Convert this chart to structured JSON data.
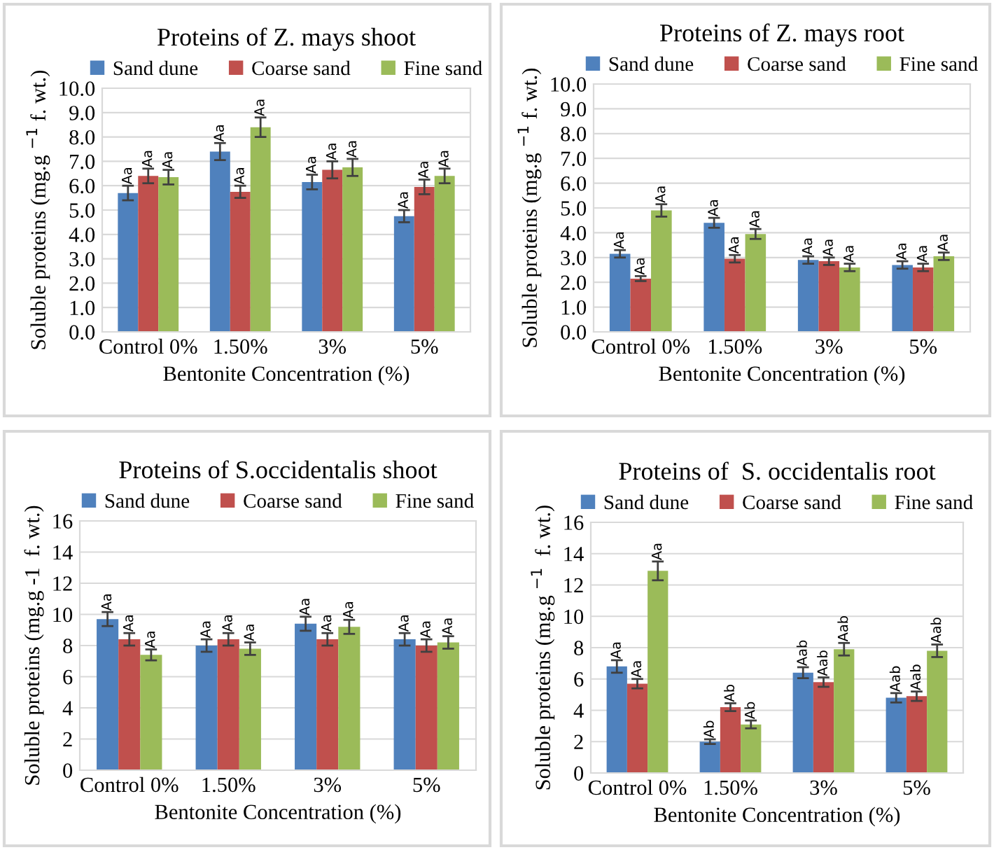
{
  "chart_data": [
    {
      "type": "bar",
      "title": "Proteins of Z. mays shoot",
      "xlabel": "Bentonite Concentration (%)",
      "ylabel": "Soluble proteins (mg.g $^{−1}$ f. wt.)",
      "categories": [
        "Control 0%",
        "1.50%",
        "3%",
        "5%"
      ],
      "series": [
        {
          "name": "Sand dune",
          "color": "#4f81bd",
          "values": [
            5.7,
            7.4,
            6.15,
            4.75
          ],
          "errors": [
            0.3,
            0.35,
            0.3,
            0.25
          ],
          "value_labels": [
            "Aa",
            "Aa",
            "Aa",
            "Aa"
          ]
        },
        {
          "name": "Coarse sand",
          "color": "#c0504d",
          "values": [
            6.4,
            5.75,
            6.65,
            5.95
          ],
          "errors": [
            0.3,
            0.25,
            0.35,
            0.3
          ],
          "value_labels": [
            "Aa",
            "Aa",
            "Aa",
            "Aa"
          ]
        },
        {
          "name": "Fine sand",
          "color": "#9bbb59",
          "values": [
            6.35,
            8.4,
            6.75,
            6.4
          ],
          "errors": [
            0.3,
            0.4,
            0.35,
            0.3
          ],
          "value_labels": [
            "Aa",
            "Aa",
            "Aa",
            "Aa"
          ]
        }
      ],
      "ylim": [
        0,
        10
      ],
      "yticks": [
        {
          "value": 0,
          "label": "0.0"
        },
        {
          "value": 1,
          "label": "1.0"
        },
        {
          "value": 2,
          "label": "2.0"
        },
        {
          "value": 3,
          "label": "3.0"
        },
        {
          "value": 4,
          "label": "4.0"
        },
        {
          "value": 5,
          "label": "5.0"
        },
        {
          "value": 6,
          "label": "6.0"
        },
        {
          "value": 7,
          "label": "7.0"
        },
        {
          "value": 8,
          "label": "8.0"
        },
        {
          "value": 9,
          "label": "9.0"
        },
        {
          "value": 10,
          "label": "10.0"
        }
      ],
      "grid": "y",
      "legend": "top"
    },
    {
      "type": "bar",
      "title": "Proteins of Z. mays root",
      "xlabel": "Bentonite Concentration (%)",
      "ylabel": "Soluble proteins (mg.g $^{−1}$ f. wt.)",
      "categories": [
        "Control 0%",
        "1.50%",
        "3%",
        "5%"
      ],
      "series": [
        {
          "name": "Sand dune",
          "color": "#4f81bd",
          "values": [
            3.15,
            4.4,
            2.9,
            2.7
          ],
          "errors": [
            0.15,
            0.2,
            0.15,
            0.15
          ],
          "value_labels": [
            "Aa",
            "Aa",
            "Aa",
            "Aa"
          ]
        },
        {
          "name": "Coarse sand",
          "color": "#c0504d",
          "values": [
            2.15,
            2.95,
            2.85,
            2.6
          ],
          "errors": [
            0.1,
            0.15,
            0.15,
            0.15
          ],
          "value_labels": [
            "Aa",
            "Aa",
            "Aa",
            "Aa"
          ]
        },
        {
          "name": "Fine sand",
          "color": "#9bbb59",
          "values": [
            4.9,
            3.95,
            2.6,
            3.05
          ],
          "errors": [
            0.25,
            0.2,
            0.15,
            0.15
          ],
          "value_labels": [
            "Aa",
            "Aa",
            "Aa",
            "Aa"
          ]
        }
      ],
      "ylim": [
        0,
        10
      ],
      "yticks": [
        {
          "value": 0,
          "label": "0.0"
        },
        {
          "value": 1,
          "label": "1.0"
        },
        {
          "value": 2,
          "label": "2.0"
        },
        {
          "value": 3,
          "label": "3.0"
        },
        {
          "value": 4,
          "label": "4.0"
        },
        {
          "value": 5,
          "label": "5.0"
        },
        {
          "value": 6,
          "label": "6.0"
        },
        {
          "value": 7,
          "label": "7.0"
        },
        {
          "value": 8,
          "label": "8.0"
        },
        {
          "value": 9,
          "label": "9.0"
        },
        {
          "value": 10,
          "label": "10.0"
        }
      ],
      "grid": "y",
      "legend": "top"
    },
    {
      "type": "bar",
      "title": "Proteins of S.occidentalis shoot",
      "xlabel": "Bentonite Concentration (%)",
      "ylabel": "Soluble proteins (mg.g -1  f. wt.)",
      "categories": [
        "Control 0%",
        "1.50%",
        "3%",
        "5%"
      ],
      "series": [
        {
          "name": "Sand dune",
          "color": "#4f81bd",
          "values": [
            9.7,
            8.0,
            9.4,
            8.4
          ],
          "errors": [
            0.45,
            0.4,
            0.45,
            0.4
          ],
          "value_labels": [
            "Aa",
            "Aa",
            "Aa",
            "Aa"
          ]
        },
        {
          "name": "Coarse sand",
          "color": "#c0504d",
          "values": [
            8.4,
            8.4,
            8.4,
            8.0
          ],
          "errors": [
            0.4,
            0.4,
            0.4,
            0.4
          ],
          "value_labels": [
            "Aa",
            "Aa",
            "Aa",
            "Aa"
          ]
        },
        {
          "name": "Fine sand",
          "color": "#9bbb59",
          "values": [
            7.4,
            7.8,
            9.2,
            8.2
          ],
          "errors": [
            0.35,
            0.4,
            0.45,
            0.4
          ],
          "value_labels": [
            "Aa",
            "Aa",
            "Aa",
            "Aa"
          ]
        }
      ],
      "ylim": [
        0,
        16
      ],
      "yticks": [
        0,
        2,
        4,
        6,
        8,
        10,
        12,
        14,
        16
      ],
      "grid": "y",
      "legend": "top"
    },
    {
      "type": "bar",
      "title": "Proteins of  S. occidentalis root",
      "xlabel": "Bentonite Concentration (%)",
      "ylabel": "Soluble proteins (mg.g $^{−1}$  f. wt.)",
      "categories": [
        "Control 0%",
        "1.50%",
        "3%",
        "5%"
      ],
      "series": [
        {
          "name": "Sand dune",
          "color": "#4f81bd",
          "values": [
            6.8,
            2.0,
            6.4,
            4.8
          ],
          "errors": [
            0.4,
            0.15,
            0.35,
            0.3
          ],
          "value_labels": [
            "Aa",
            "Ab",
            "Aab",
            "Aab"
          ]
        },
        {
          "name": "Coarse sand",
          "color": "#c0504d",
          "values": [
            5.7,
            4.2,
            5.8,
            4.9
          ],
          "errors": [
            0.3,
            0.25,
            0.3,
            0.3
          ],
          "value_labels": [
            "Aa",
            "Ab",
            "Aab",
            "Aab"
          ]
        },
        {
          "name": "Fine sand",
          "color": "#9bbb59",
          "values": [
            12.9,
            3.1,
            7.9,
            7.8
          ],
          "errors": [
            0.6,
            0.25,
            0.4,
            0.4
          ],
          "value_labels": [
            "Aa",
            "Ab",
            "Aab",
            "Aab"
          ]
        }
      ],
      "ylim": [
        0,
        16
      ],
      "yticks": [
        0,
        2,
        4,
        6,
        8,
        10,
        12,
        14,
        16
      ],
      "grid": "y",
      "legend": "top"
    }
  ]
}
